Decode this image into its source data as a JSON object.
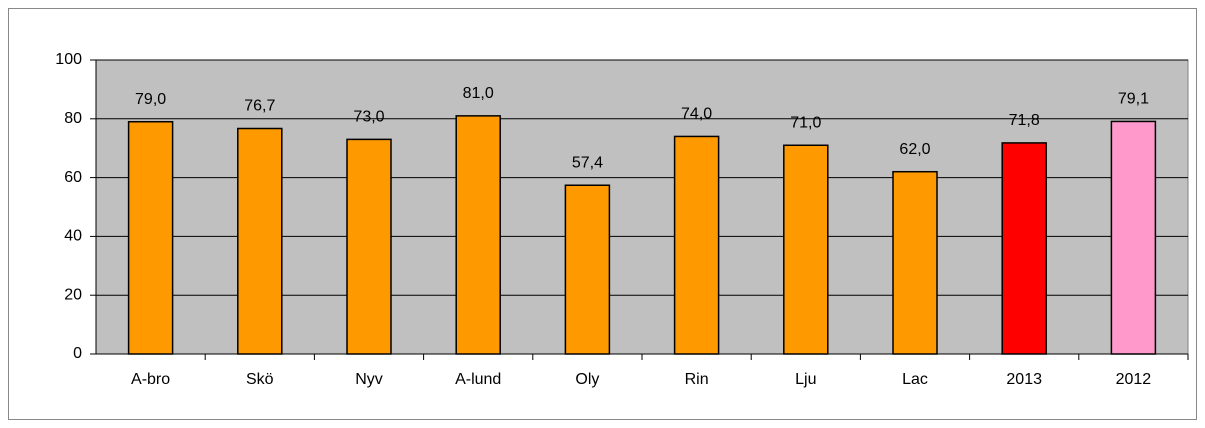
{
  "chart_data": {
    "type": "bar",
    "categories": [
      "A-bro",
      "Skö",
      "Nyv",
      "A-lund",
      "Oly",
      "Rin",
      "Lju",
      "Lac",
      "2013",
      "2012"
    ],
    "values": [
      79.0,
      76.7,
      73.0,
      81.0,
      57.4,
      74.0,
      71.0,
      62.0,
      71.8,
      79.1
    ],
    "value_labels": [
      "79,0",
      "76,7",
      "73,0",
      "81,0",
      "57,4",
      "74,0",
      "71,0",
      "62,0",
      "71,8",
      "79,1"
    ],
    "colors": [
      "#ff9900",
      "#ff9900",
      "#ff9900",
      "#ff9900",
      "#ff9900",
      "#ff9900",
      "#ff9900",
      "#ff9900",
      "#ff0000",
      "#ff99cc"
    ],
    "ylim": [
      0,
      100
    ],
    "yticks": [
      0,
      20,
      40,
      60,
      80,
      100
    ],
    "grid": true
  }
}
